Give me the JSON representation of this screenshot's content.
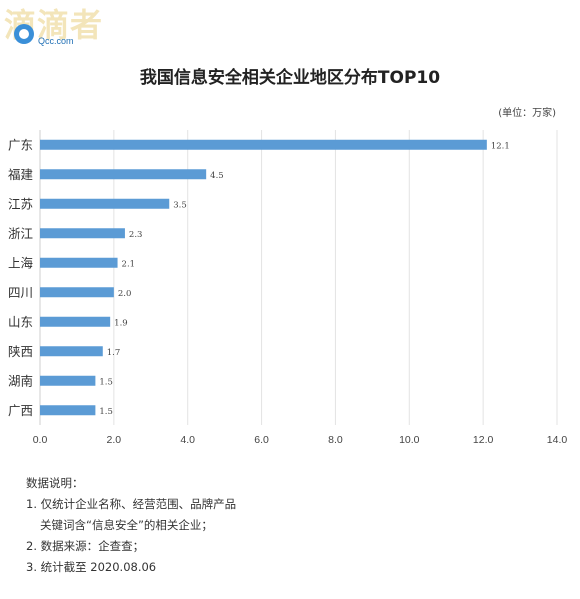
{
  "watermark": "滴滴者",
  "logo": {
    "text": "Qcc.com"
  },
  "chart_data": {
    "type": "bar",
    "orientation": "horizontal",
    "title": "我国信息安全相关企业地区分布TOP10",
    "unit": "(单位：万家)",
    "categories": [
      "广东",
      "福建",
      "江苏",
      "浙江",
      "上海",
      "四川",
      "山东",
      "陕西",
      "湖南",
      "广西"
    ],
    "values": [
      12.1,
      4.5,
      3.5,
      2.3,
      2.1,
      2.0,
      1.9,
      1.7,
      1.5,
      1.5
    ],
    "value_labels": [
      "12.1",
      "4.5",
      "3.5",
      "2.3",
      "2.1",
      "2.0",
      "1.9",
      "1.7",
      "1.5",
      "1.5"
    ],
    "xlim": [
      0,
      14
    ],
    "xticks": [
      "0.0",
      "2.0",
      "4.0",
      "6.0",
      "8.0",
      "10.0",
      "12.0",
      "14.0"
    ],
    "grid": true,
    "bar_color": "#5b9bd5"
  },
  "notes": {
    "heading": "数据说明：",
    "lines": [
      "1. 仅统计企业名称、经营范围、品牌产品",
      "关键词含“信息安全”的相关企业；",
      "2. 数据来源：企查查；",
      "3. 统计截至 2020.08.06"
    ]
  }
}
